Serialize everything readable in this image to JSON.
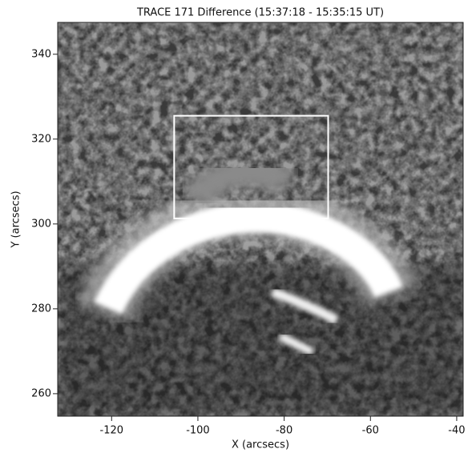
{
  "chart_data": {
    "type": "image",
    "title": "TRACE 171 Difference (15:37:18 - 15:35:15 UT)",
    "x_label": "X (arcsecs)",
    "y_label": "Y (arcsecs)",
    "xlim": [
      -132.5,
      -38.5
    ],
    "ylim": [
      254.7,
      347.5
    ],
    "xticks": [
      -120,
      -100,
      -80,
      -60,
      -40
    ],
    "yticks": [
      260,
      280,
      300,
      320,
      340
    ],
    "box": {
      "x": [
        -105.5,
        -69.8
      ],
      "y": [
        301.3,
        325.5
      ],
      "color": "#ffffff"
    }
  }
}
